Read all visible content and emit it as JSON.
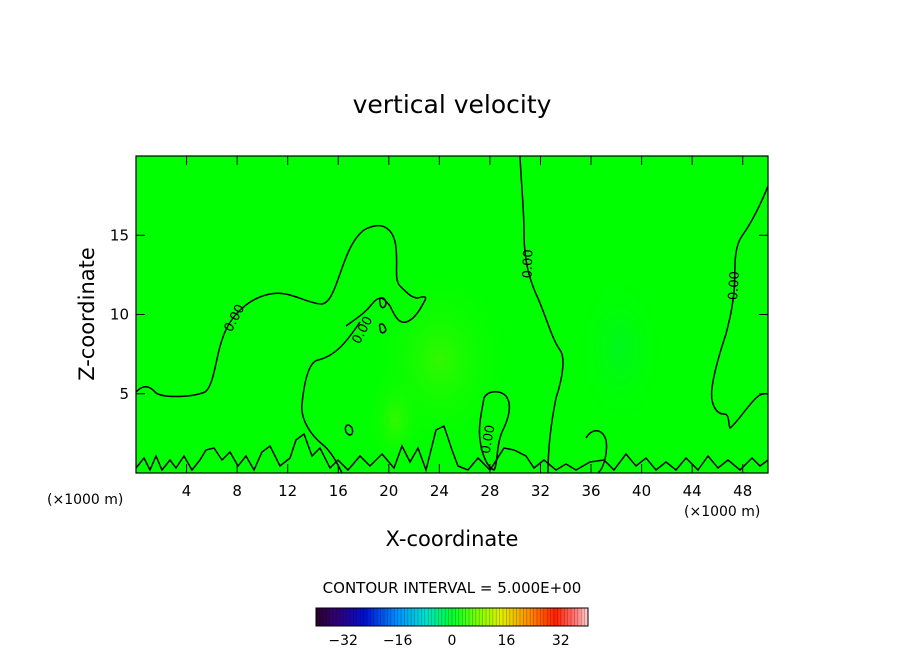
{
  "chart_data": {
    "type": "heatmap",
    "title": "vertical velocity",
    "xlabel": "X-coordinate",
    "ylabel": "Z-coordinate",
    "x_unit": "(×1000 m)",
    "y_unit": "(×1000 m)",
    "xlim": [
      0,
      50
    ],
    "ylim": [
      0,
      20
    ],
    "x_ticks": [
      4,
      8,
      12,
      16,
      20,
      24,
      28,
      32,
      36,
      40,
      44,
      48
    ],
    "y_ticks": [
      5,
      10,
      15
    ],
    "contour_level_label": "0.00",
    "contour_interval_text": "CONTOUR INTERVAL = 5.000E+00",
    "colorbar": {
      "min": -40,
      "max": 40,
      "ticks": [
        -32,
        -16,
        0,
        16,
        32
      ],
      "tick_labels": [
        "−32",
        "−16",
        "0",
        "16",
        "32"
      ]
    },
    "colors": {
      "background_field": "#00ff00",
      "frame": "#000000",
      "contour": "#000000"
    }
  }
}
